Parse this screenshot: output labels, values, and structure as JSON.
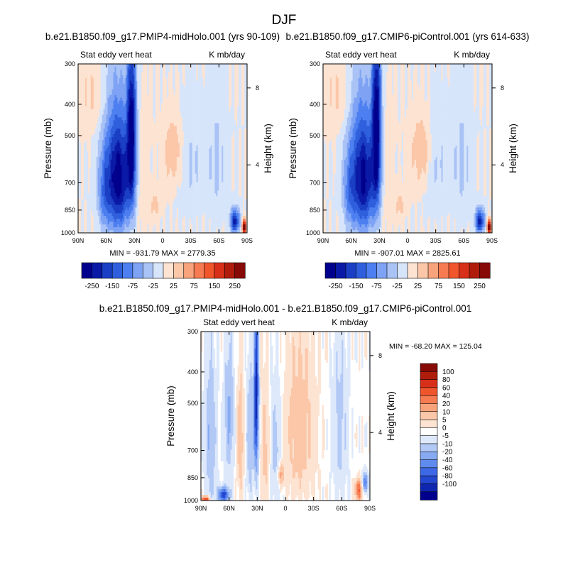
{
  "page_title": "DJF",
  "colors": {
    "blues": [
      "#00008c",
      "#0a1aa6",
      "#1a3fc4",
      "#2f5fdc",
      "#4d7ff0",
      "#7ea2f4",
      "#a9c3f6",
      "#d7e5fb"
    ],
    "reds": [
      "#fde3d2",
      "#fbc7a8",
      "#f9a37c",
      "#f67b50",
      "#f0552c",
      "#d83018",
      "#b01c0c",
      "#870a06"
    ],
    "diff_scale": [
      "#00008c",
      "#0f27b0",
      "#2347cf",
      "#3d69e6",
      "#5f8bef",
      "#87aaf3",
      "#b2c9f6",
      "#dde8fb",
      "#ffffff",
      "#fde3d2",
      "#fbc7a8",
      "#f9a37c",
      "#f67b50",
      "#f0552c",
      "#d83018",
      "#b01c0c",
      "#870a06"
    ]
  },
  "chart_data": [
    {
      "type": "heatmap",
      "title": "b.e21.B1850.f09_g17.PMIP4-midHolo.001 (yrs 90-109)",
      "left_label": "Stat eddy vert heat",
      "right_label": "K mb/day",
      "ylabel": "Pressure (mb)",
      "ylabel_right": "Height (km)",
      "x_ticks": [
        "90N",
        "60N",
        "30N",
        "0",
        "30S",
        "60S",
        "90S"
      ],
      "y_ticks": [
        "300",
        "400",
        "500",
        "700",
        "850",
        "1000"
      ],
      "height_ticks": [
        "8",
        "4"
      ],
      "stats": "MIN = -931.79   MAX = 2779.35",
      "colorbar_labels": [
        "-250",
        "-150",
        "-75",
        "-25",
        "25",
        "75",
        "150",
        "250"
      ],
      "features": [
        {
          "lat": 50,
          "p": 650,
          "w": 14,
          "h": 320,
          "v": -3.5
        },
        {
          "lat": 45,
          "p": 700,
          "w": 10,
          "h": 250,
          "v": -2.5
        },
        {
          "lat": 33,
          "p": 500,
          "w": 5,
          "h": 300,
          "v": -5.5
        },
        {
          "lat": 62,
          "p": 750,
          "w": 7,
          "h": 200,
          "v": -1.8
        },
        {
          "lat": -12,
          "p": 560,
          "w": 11,
          "h": 140,
          "v": 1.4
        },
        {
          "lat": 8,
          "p": 820,
          "w": 6,
          "h": 100,
          "v": 0.9
        },
        {
          "lat": -30,
          "p": 600,
          "w": 14,
          "h": 250,
          "v": -0.8
        },
        {
          "lat": -58,
          "p": 600,
          "w": 10,
          "h": 300,
          "v": -0.9
        },
        {
          "lat": -77,
          "p": 920,
          "w": 5,
          "h": 80,
          "v": -4.5
        },
        {
          "lat": -87,
          "p": 960,
          "w": 2,
          "h": 50,
          "v": 6.5
        },
        {
          "lat": 75,
          "p": 380,
          "w": 14,
          "h": 100,
          "v": 0.8
        },
        {
          "lat": 20,
          "p": 650,
          "w": 6,
          "h": 300,
          "v": 0.7
        }
      ]
    },
    {
      "type": "heatmap",
      "title": "b.e21.B1850.f09_g17.CMIP6-piControl.001 (yrs 614-633)",
      "left_label": "Stat eddy vert heat",
      "right_label": "K mb/day",
      "ylabel": "Pressure (mb)",
      "ylabel_right": "Height (km)",
      "x_ticks": [
        "90N",
        "60N",
        "30N",
        "0",
        "30S",
        "60S",
        "90S"
      ],
      "y_ticks": [
        "300",
        "400",
        "500",
        "700",
        "850",
        "1000"
      ],
      "height_ticks": [
        "8",
        "4"
      ],
      "stats": "MIN = -907.01   MAX = 2825.61",
      "colorbar_labels": [
        "-250",
        "-150",
        "-75",
        "-25",
        "25",
        "75",
        "150",
        "250"
      ],
      "features": [
        {
          "lat": 50,
          "p": 650,
          "w": 14,
          "h": 320,
          "v": -3.3
        },
        {
          "lat": 45,
          "p": 700,
          "w": 10,
          "h": 250,
          "v": -2.4
        },
        {
          "lat": 33,
          "p": 480,
          "w": 5,
          "h": 320,
          "v": -5.6
        },
        {
          "lat": 62,
          "p": 750,
          "w": 7,
          "h": 200,
          "v": -1.6
        },
        {
          "lat": -15,
          "p": 560,
          "w": 11,
          "h": 150,
          "v": 1.5
        },
        {
          "lat": 8,
          "p": 820,
          "w": 6,
          "h": 100,
          "v": 0.9
        },
        {
          "lat": -30,
          "p": 600,
          "w": 14,
          "h": 250,
          "v": -0.8
        },
        {
          "lat": -58,
          "p": 600,
          "w": 10,
          "h": 300,
          "v": -0.9
        },
        {
          "lat": -77,
          "p": 920,
          "w": 5,
          "h": 80,
          "v": -4.5
        },
        {
          "lat": -87,
          "p": 960,
          "w": 2,
          "h": 50,
          "v": 6.5
        },
        {
          "lat": 75,
          "p": 380,
          "w": 14,
          "h": 100,
          "v": 0.8
        },
        {
          "lat": 20,
          "p": 650,
          "w": 6,
          "h": 300,
          "v": 0.7
        }
      ]
    },
    {
      "type": "heatmap",
      "title": "b.e21.B1850.f09_g17.PMIP4-midHolo.001 - b.e21.B1850.f09_g17.CMIP6-piControl.001",
      "left_label": "Stat eddy vert heat",
      "right_label": "K mb/day",
      "ylabel": "Pressure (mb)",
      "ylabel_right": "Height (km)",
      "x_ticks": [
        "90N",
        "60N",
        "30N",
        "0",
        "30S",
        "60S",
        "90S"
      ],
      "y_ticks": [
        "300",
        "400",
        "500",
        "700",
        "850",
        "1000"
      ],
      "height_ticks": [
        "8",
        "4"
      ],
      "stats": "MIN = -68.20   MAX = 125.04",
      "colorbar_labels": [
        "100",
        "80",
        "60",
        "40",
        "20",
        "10",
        "5",
        "0",
        "-5",
        "-10",
        "-20",
        "-40",
        "-60",
        "-80",
        "-100"
      ],
      "features": [
        {
          "lat": 80,
          "p": 650,
          "w": 6,
          "h": 350,
          "v": -1.2
        },
        {
          "lat": 60,
          "p": 550,
          "w": 5,
          "h": 250,
          "v": -1.4
        },
        {
          "lat": 48,
          "p": 650,
          "w": 4,
          "h": 300,
          "v": 1.0
        },
        {
          "lat": 38,
          "p": 650,
          "w": 4,
          "h": 300,
          "v": -1.1
        },
        {
          "lat": 31,
          "p": 480,
          "w": 2.5,
          "h": 300,
          "v": -4.2
        },
        {
          "lat": 22,
          "p": 700,
          "w": 5,
          "h": 300,
          "v": 0.9
        },
        {
          "lat": 10,
          "p": 700,
          "w": 6,
          "h": 300,
          "v": -1.0
        },
        {
          "lat": -15,
          "p": 600,
          "w": 16,
          "h": 350,
          "v": 1.0
        },
        {
          "lat": 66,
          "p": 960,
          "w": 6,
          "h": 50,
          "v": -3.5
        },
        {
          "lat": 85,
          "p": 990,
          "w": 4,
          "h": 20,
          "v": 3.5
        },
        {
          "lat": -58,
          "p": 600,
          "w": 8,
          "h": 350,
          "v": -0.9
        },
        {
          "lat": -78,
          "p": 930,
          "w": 4,
          "h": 70,
          "v": 2.5
        },
        {
          "lat": -85,
          "p": 880,
          "w": 3,
          "h": 60,
          "v": -2.5
        },
        {
          "lat": 5,
          "p": 830,
          "w": 4,
          "h": 70,
          "v": 1.5
        }
      ]
    }
  ]
}
